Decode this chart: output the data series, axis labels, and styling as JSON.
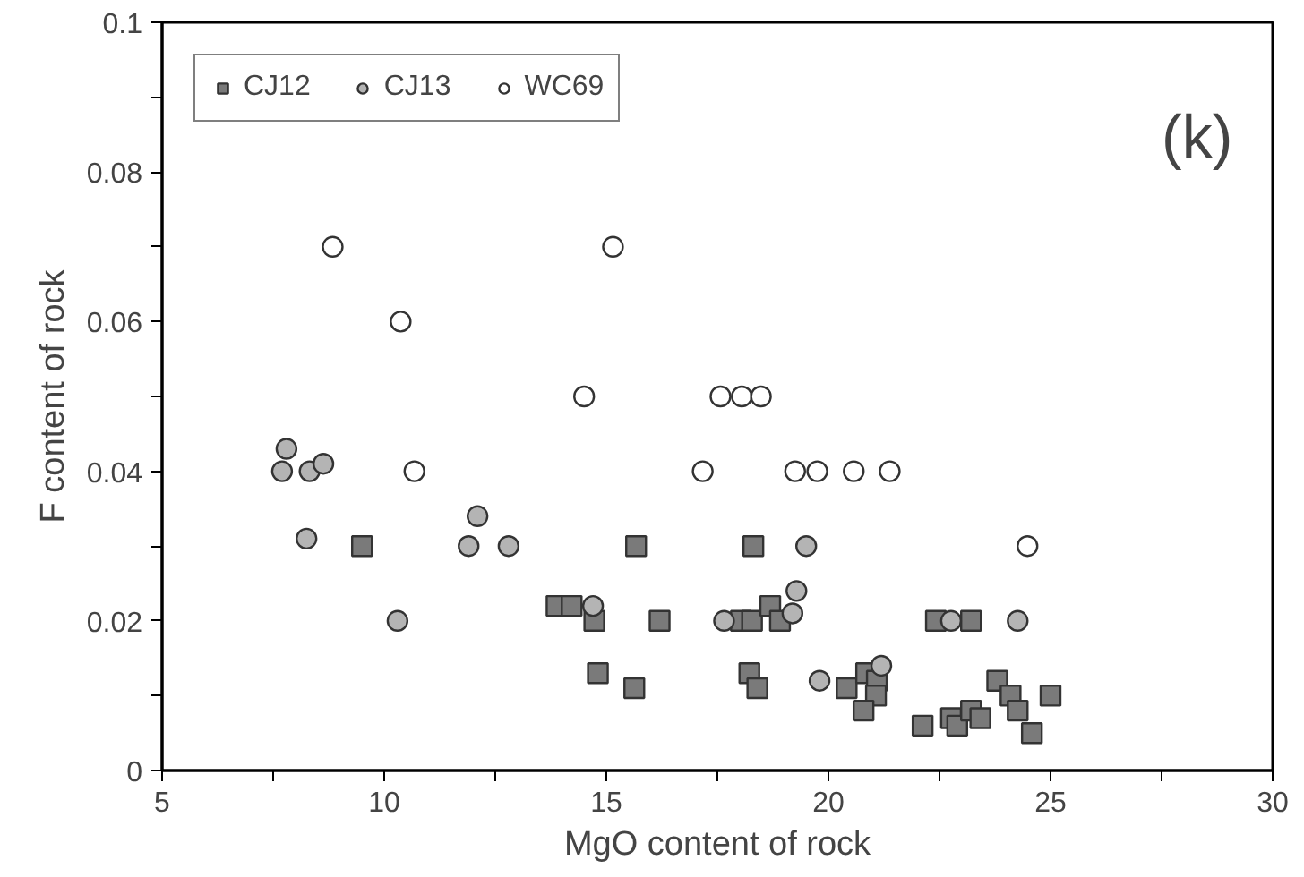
{
  "chart_data": {
    "type": "scatter",
    "xlabel": "MgO content of rock",
    "ylabel": "F content of rock",
    "annotations": [
      "(k)"
    ],
    "legend": "top left",
    "grid": false,
    "xlim": [
      5,
      30
    ],
    "ylim": [
      0,
      0.1
    ],
    "xticks": [
      5,
      {
        "value": 7.5,
        "label": null
      },
      10,
      {
        "value": 12.5,
        "label": null
      },
      15,
      {
        "value": 17.5,
        "label": null
      },
      20,
      {
        "value": 22.5,
        "label": null
      },
      25,
      {
        "value": 27.5,
        "label": null
      },
      30
    ],
    "yticks": [
      0,
      {
        "value": 0.01,
        "label": null
      },
      0.02,
      {
        "value": 0.03,
        "label": null
      },
      0.04,
      {
        "value": 0.05,
        "label": null
      },
      0.06,
      {
        "value": 0.07,
        "label": null
      },
      0.08,
      {
        "value": 0.09,
        "label": null
      },
      0.1
    ],
    "series": [
      {
        "name": "CJ12",
        "color": "#7a7a7a",
        "marker": "square",
        "x": [
          9.5,
          15.67,
          13.88,
          14.22,
          14.73,
          16.2,
          14.81,
          15.63,
          18.31,
          18.03,
          18.28,
          18.69,
          18.91,
          18.22,
          18.4,
          20.41,
          20.85,
          21.09,
          21.07,
          20.79,
          22.12,
          22.42,
          23.21,
          22.76,
          22.9,
          23.21,
          23.42,
          23.8,
          24.1,
          24.26,
          24.58,
          25.0
        ],
        "values": [
          0.03,
          0.03,
          0.022,
          0.022,
          0.02,
          0.02,
          0.013,
          0.011,
          0.03,
          0.02,
          0.02,
          0.022,
          0.02,
          0.013,
          0.011,
          0.011,
          0.013,
          0.012,
          0.01,
          0.008,
          0.006,
          0.02,
          0.02,
          0.007,
          0.006,
          0.008,
          0.007,
          0.012,
          0.01,
          0.008,
          0.005,
          0.01
        ]
      },
      {
        "name": "CJ13",
        "color": "#b4b4b4",
        "marker": "circle",
        "x": [
          7.8,
          7.7,
          8.32,
          8.63,
          8.25,
          10.3,
          12.1,
          11.9,
          12.8,
          14.7,
          17.65,
          19.5,
          19.28,
          19.19,
          19.8,
          21.19,
          22.76,
          24.26
        ],
        "values": [
          0.043,
          0.04,
          0.04,
          0.041,
          0.031,
          0.02,
          0.034,
          0.03,
          0.03,
          0.022,
          0.02,
          0.03,
          0.024,
          0.021,
          0.012,
          0.014,
          0.02,
          0.02
        ]
      },
      {
        "name": "WC69",
        "color": "#ffffff",
        "marker": "circle",
        "x": [
          8.84,
          15.15,
          10.37,
          14.5,
          17.57,
          18.05,
          18.48,
          10.68,
          17.17,
          19.25,
          19.75,
          20.57,
          21.38,
          24.48
        ],
        "values": [
          0.07,
          0.07,
          0.06,
          0.05,
          0.05,
          0.05,
          0.05,
          0.04,
          0.04,
          0.04,
          0.04,
          0.04,
          0.04,
          0.03
        ]
      }
    ]
  }
}
